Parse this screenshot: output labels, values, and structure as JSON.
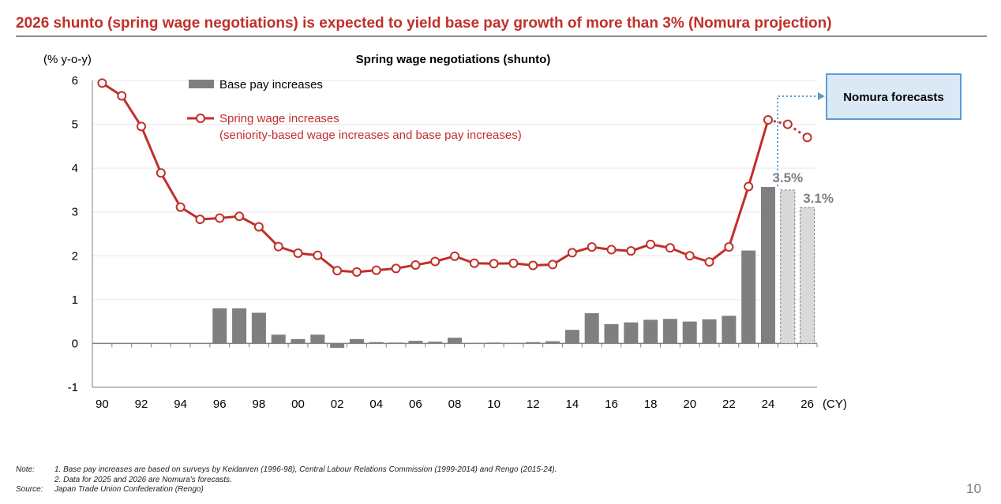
{
  "page": {
    "headline": "2026 shunto (spring wage negotiations) is expected to yield base pay growth of more than 3% (Nomura projection)",
    "page_number": "10",
    "notes": {
      "note_label": "Note:",
      "note_1": "1. Base pay increases are based on surveys by Keidanren (1996-98), Central Labour Relations Commission (1999-2014) and Rengo (2015-24).",
      "note_2": "2. Data for 2025 and 2026 are Nomura's forecasts.",
      "source_label": "Source:",
      "source_text": "Japan Trade Union Confederation (Rengo)"
    }
  },
  "chart_data": {
    "type": "bar+line",
    "title": "Spring wage negotiations (shunto)",
    "ylabel": "(% y-o-y)",
    "xlabel": "(CY)",
    "ylim": [
      -1,
      6
    ],
    "yticks": [
      "6",
      "5",
      "4",
      "3",
      "2",
      "1",
      "0",
      "-1"
    ],
    "x": [
      1990,
      1991,
      1992,
      1993,
      1994,
      1995,
      1996,
      1997,
      1998,
      1999,
      2000,
      2001,
      2002,
      2003,
      2004,
      2005,
      2006,
      2007,
      2008,
      2009,
      2010,
      2011,
      2012,
      2013,
      2014,
      2015,
      2016,
      2017,
      2018,
      2019,
      2020,
      2021,
      2022,
      2023,
      2024,
      2025,
      2026
    ],
    "xtick_labels": [
      "90",
      "92",
      "94",
      "96",
      "98",
      "00",
      "02",
      "04",
      "06",
      "08",
      "10",
      "12",
      "14",
      "16",
      "18",
      "20",
      "22",
      "24",
      "26"
    ],
    "grid": true,
    "legend_position": "top-left",
    "forecast_label": "Nomura forecasts",
    "forecast_years": [
      2025,
      2026
    ],
    "series": [
      {
        "name": "Base pay increases",
        "kind": "bar",
        "color": "#7f7f7f",
        "forecast_color": "#d9d9d9",
        "values": [
          null,
          null,
          null,
          null,
          null,
          null,
          0.8,
          0.8,
          0.7,
          0.2,
          0.1,
          0.2,
          -0.1,
          0.1,
          0.03,
          0.02,
          0.06,
          0.04,
          0.13,
          0.01,
          0.02,
          0.01,
          0.03,
          0.05,
          0.31,
          0.69,
          0.44,
          0.48,
          0.54,
          0.56,
          0.5,
          0.55,
          0.63,
          2.12,
          3.57,
          3.5,
          3.1
        ],
        "value_labels": {
          "2025": "3.5%",
          "2026": "3.1%"
        }
      },
      {
        "name": "Spring wage increases",
        "name_line2": "(seniority-based wage increases and base pay increases)",
        "kind": "line",
        "color": "#c0302b",
        "values": [
          5.94,
          5.65,
          4.95,
          3.89,
          3.11,
          2.83,
          2.86,
          2.9,
          2.66,
          2.21,
          2.06,
          2.01,
          1.66,
          1.63,
          1.67,
          1.71,
          1.79,
          1.87,
          1.99,
          1.83,
          1.82,
          1.83,
          1.78,
          1.8,
          2.07,
          2.2,
          2.14,
          2.11,
          2.26,
          2.18,
          2.0,
          1.86,
          2.2,
          3.58,
          5.1,
          5.0,
          4.7
        ]
      }
    ]
  }
}
